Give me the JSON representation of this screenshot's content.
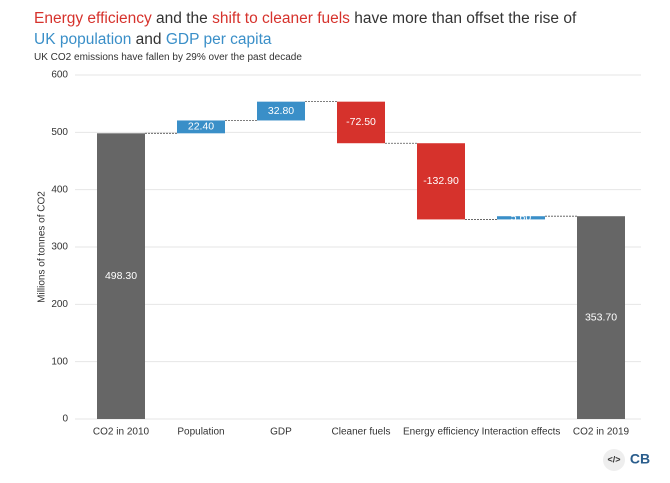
{
  "chart_data": {
    "type": "waterfall",
    "title": [
      {
        "text": "Energy efficiency",
        "color": "#d6322c"
      },
      {
        "text": " and the ",
        "color": "#333333"
      },
      {
        "text": "shift to cleaner fuels",
        "color": "#d6322c"
      },
      {
        "text": " have more than offset the rise of ",
        "color": "#333333"
      },
      {
        "text": "UK population",
        "color": "#3a8fc8"
      },
      {
        "text": " and ",
        "color": "#333333"
      },
      {
        "text": "GDP per capita",
        "color": "#3a8fc8"
      }
    ],
    "subtitle": "UK CO2 emissions have fallen by 29% over the past decade",
    "ylabel": "Millions of tonnes of CO2",
    "categories": [
      "CO2 in 2010",
      "Population",
      "GDP",
      "Cleaner fuels",
      "Energy efficiency",
      "Interaction effects",
      "CO2 in 2019"
    ],
    "values": [
      498.3,
      22.4,
      32.8,
      -72.5,
      -132.9,
      5.6,
      353.7
    ],
    "value_labels": [
      "498.30",
      "22.40",
      "32.80",
      "-72.50",
      "-132.90",
      "5.60",
      "353.70"
    ],
    "measure": [
      "absolute",
      "relative",
      "relative",
      "relative",
      "relative",
      "relative",
      "absolute"
    ],
    "colors": [
      "#666666",
      "#3a8fc8",
      "#3a8fc8",
      "#d6322c",
      "#d6322c",
      "#3a8fc8",
      "#666666"
    ],
    "ylim": [
      0,
      600
    ],
    "yticks": [
      0,
      100,
      200,
      300,
      400,
      500,
      600
    ],
    "grid": true,
    "logo": "CB",
    "embed_icon": "</>"
  }
}
